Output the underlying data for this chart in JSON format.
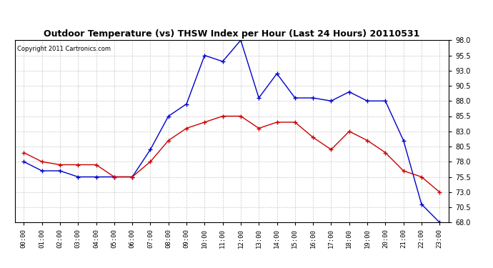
{
  "title": "Outdoor Temperature (vs) THSW Index per Hour (Last 24 Hours) 20110531",
  "copyright": "Copyright 2011 Cartronics.com",
  "hours": [
    "00:00",
    "01:00",
    "02:00",
    "03:00",
    "04:00",
    "05:00",
    "06:00",
    "07:00",
    "08:00",
    "09:00",
    "10:00",
    "11:00",
    "12:00",
    "13:00",
    "14:00",
    "15:00",
    "16:00",
    "17:00",
    "18:00",
    "19:00",
    "20:00",
    "21:00",
    "22:00",
    "23:00"
  ],
  "temp_red": [
    79.5,
    78.0,
    77.5,
    77.5,
    77.5,
    75.5,
    75.5,
    78.0,
    81.5,
    83.5,
    84.5,
    85.5,
    85.5,
    83.5,
    84.5,
    84.5,
    82.0,
    80.0,
    83.0,
    81.5,
    79.5,
    76.5,
    75.5,
    73.0
  ],
  "thsw_blue": [
    78.0,
    76.5,
    76.5,
    75.5,
    75.5,
    75.5,
    75.5,
    80.0,
    85.5,
    87.5,
    95.5,
    94.5,
    98.0,
    88.5,
    92.5,
    88.5,
    88.5,
    88.0,
    89.5,
    88.0,
    88.0,
    81.5,
    71.0,
    68.0
  ],
  "ylim_min": 68.0,
  "ylim_max": 98.0,
  "yticks": [
    68.0,
    70.5,
    73.0,
    75.5,
    78.0,
    80.5,
    83.0,
    85.5,
    88.0,
    90.5,
    93.0,
    95.5,
    98.0
  ],
  "grid_color": "#bbbbbb",
  "red_color": "#cc0000",
  "blue_color": "#0000cc",
  "outer_bg": "#ffffff",
  "plot_bg": "#ffffff",
  "border_color": "#000000"
}
